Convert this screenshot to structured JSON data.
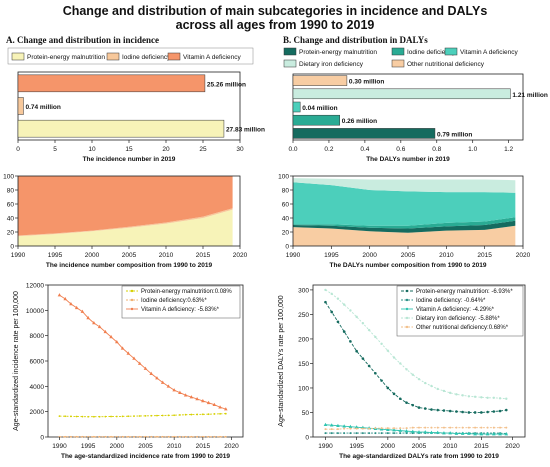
{
  "figure": {
    "title_line1": "Change and distribution of main subcategories in incidence and DALYs",
    "title_line2": "across all ages from 1990 to 2019",
    "section_a": "A. Change and distribution in incidence",
    "section_b": "B. Change and distribution in DALYs"
  },
  "colors": {
    "protein": "#f7f3b8",
    "iodine": "#f7c89b",
    "vitaminA": "#f5956a",
    "b_protein": "#156b5f",
    "b_iodine": "#2aab94",
    "b_vitaminA": "#4ccfbb",
    "b_iron": "#c9ecdf",
    "b_other": "#f8cda3"
  },
  "chart_data": [
    {
      "id": "a1",
      "type": "bar",
      "orientation": "horizontal",
      "legend": [
        "Protein-energy malnutrition",
        "Iodine deficiency",
        "Vitamin A deficiency"
      ],
      "categories": [
        "Vitamin A deficiency",
        "Iodine deficiency",
        "Protein-energy malnutrition"
      ],
      "values": [
        25.26,
        0.74,
        27.83
      ],
      "labels": [
        "25.26 million",
        "0.74 million",
        "27.83 million"
      ],
      "xticks": [
        "0",
        "5",
        "10",
        "15",
        "20",
        "25",
        "30"
      ],
      "xlim": [
        0,
        30
      ],
      "xlabel": "The incidence number in 2019"
    },
    {
      "id": "b1",
      "type": "bar",
      "orientation": "horizontal",
      "legend": [
        "Protein-energy malnutrition",
        "Iodine deficiency",
        "Vitamin A deficiency",
        "Dietary iron deficiency",
        "Other nutritional deficiency"
      ],
      "categories": [
        "Other nutritional deficiency",
        "Dietary iron deficiency",
        "Vitamin A deficiency",
        "Iodine deficiency",
        "Protein-energy malnutrition"
      ],
      "values": [
        0.3,
        1.21,
        0.04,
        0.26,
        0.79
      ],
      "labels": [
        "0.30 million",
        "1.21 million",
        "0.04 million",
        "0.26 million",
        "0.79 million"
      ],
      "xticks": [
        "0.0",
        "0.2",
        "0.4",
        "0.6",
        "0.8",
        "1.0",
        "1.2"
      ],
      "xlim": [
        0,
        1.28
      ],
      "xlabel": "The DALYs number in 2019"
    },
    {
      "id": "a2",
      "type": "area",
      "stacked_percent": true,
      "x": [
        1990,
        1995,
        2000,
        2005,
        2010,
        2015,
        2019
      ],
      "series": [
        {
          "name": "Protein-energy malnutrition",
          "values": [
            14,
            17,
            21,
            26,
            32,
            40,
            52
          ]
        },
        {
          "name": "Iodine deficiency",
          "values": [
            1,
            1,
            1,
            1.5,
            1.5,
            2,
            2
          ]
        },
        {
          "name": "Vitamin A deficiency",
          "values": [
            85,
            82,
            78,
            72.5,
            66.5,
            58,
            46
          ]
        }
      ],
      "xticks": [
        "1990",
        "1995",
        "2000",
        "2005",
        "2010",
        "2015",
        "2020"
      ],
      "yticks": [
        "0",
        "20",
        "40",
        "60",
        "80",
        "100"
      ],
      "ylim": [
        0,
        100
      ],
      "xlim": [
        1990,
        2020
      ],
      "xlabel": "The incidence number composition from 1990 to 2019"
    },
    {
      "id": "b2",
      "type": "area",
      "stacked_percent": true,
      "x": [
        1990,
        1995,
        2000,
        2005,
        2010,
        2015,
        2019
      ],
      "series": [
        {
          "name": "Other nutritional deficiency",
          "values": [
            27,
            25,
            21,
            19,
            22,
            23,
            29
          ]
        },
        {
          "name": "Protein-energy malnutrition",
          "values": [
            3,
            4,
            5,
            6,
            6,
            7,
            7
          ]
        },
        {
          "name": "Iodine deficiency",
          "values": [
            1,
            2,
            3,
            4,
            5,
            5,
            5
          ]
        },
        {
          "name": "Vitamin A deficiency",
          "values": [
            60,
            56,
            51,
            49,
            44,
            42,
            35
          ]
        },
        {
          "name": "Dietary iron deficiency",
          "values": [
            6,
            9,
            15,
            17,
            18,
            18,
            18
          ]
        }
      ],
      "xticks": [
        "1990",
        "1995",
        "2000",
        "2005",
        "2010",
        "2015",
        "2020"
      ],
      "yticks": [
        "0",
        "20",
        "40",
        "60",
        "80",
        "100"
      ],
      "ylim": [
        0,
        100
      ],
      "xlim": [
        1990,
        2020
      ],
      "xlabel": "The DALYs number composition from 1990 to 2019"
    },
    {
      "id": "a3",
      "type": "line",
      "x": [
        1990,
        1991,
        1992,
        1993,
        1994,
        1995,
        1996,
        1997,
        1998,
        1999,
        2000,
        2001,
        2002,
        2003,
        2004,
        2005,
        2006,
        2007,
        2008,
        2009,
        2010,
        2011,
        2012,
        2013,
        2014,
        2015,
        2016,
        2017,
        2018,
        2019
      ],
      "series": [
        {
          "name": "Protein-energy malnutrition",
          "legend": "Protein-energy malnutrition:0.08%",
          "values": [
            1650,
            1640,
            1630,
            1620,
            1610,
            1600,
            1600,
            1600,
            1610,
            1620,
            1620,
            1630,
            1640,
            1650,
            1660,
            1670,
            1680,
            1690,
            1700,
            1710,
            1720,
            1740,
            1760,
            1770,
            1780,
            1790,
            1800,
            1820,
            1830,
            1840
          ]
        },
        {
          "name": "Iodine deficiency",
          "legend": "Iodine deficiency:0.63%*",
          "values": [
            20,
            20,
            20,
            20,
            20,
            20,
            20,
            20,
            20,
            20,
            20,
            20,
            20,
            20,
            20,
            20,
            20,
            20,
            20,
            20,
            20,
            20,
            20,
            20,
            20,
            20,
            20,
            20,
            20,
            20
          ]
        },
        {
          "name": "Vitamin A deficiency",
          "legend": "Vitamin A deficiency: -5.83%*",
          "values": [
            11200,
            10900,
            10500,
            10200,
            9900,
            9400,
            9000,
            8700,
            8300,
            7900,
            7500,
            7000,
            6600,
            6200,
            5800,
            5400,
            5000,
            4650,
            4300,
            4000,
            3700,
            3500,
            3300,
            3150,
            3000,
            2850,
            2700,
            2550,
            2350,
            2200
          ]
        }
      ],
      "xticks": [
        "1990",
        "1995",
        "2000",
        "2005",
        "2010",
        "2015",
        "2020"
      ],
      "yticks": [
        "0",
        "2000",
        "4000",
        "6000",
        "8000",
        "10000",
        "12000"
      ],
      "ylim": [
        0,
        12000
      ],
      "xlim": [
        1988,
        2022
      ],
      "ylabel": "Age-standardized incidence rate per 100,000",
      "xlabel": "The age-standardized incidence rate from 1990 to 2019"
    },
    {
      "id": "b3",
      "type": "line",
      "x": [
        1990,
        1991,
        1992,
        1993,
        1994,
        1995,
        1996,
        1997,
        1998,
        1999,
        2000,
        2001,
        2002,
        2003,
        2004,
        2005,
        2006,
        2007,
        2008,
        2009,
        2010,
        2011,
        2012,
        2013,
        2014,
        2015,
        2016,
        2017,
        2018,
        2019
      ],
      "series": [
        {
          "name": "Protein-energy malnutrition",
          "legend": "Protein-energy malnutrition: -6.93%*",
          "values": [
            275,
            255,
            235,
            215,
            195,
            175,
            160,
            145,
            130,
            115,
            100,
            88,
            78,
            70,
            65,
            60,
            58,
            56,
            55,
            54,
            53,
            52,
            51,
            50,
            50,
            50,
            51,
            52,
            53,
            55
          ]
        },
        {
          "name": "Iodine deficiency",
          "legend": "Iodine deficiency: -0.64%*",
          "values": [
            8,
            8,
            8,
            8,
            8,
            8,
            8,
            8,
            8,
            8,
            8,
            8,
            8,
            8,
            8,
            8,
            8,
            8,
            8,
            8,
            8,
            8,
            8,
            8,
            8,
            8,
            8,
            8,
            8,
            7
          ]
        },
        {
          "name": "Vitamin A deficiency",
          "legend": "Vitamin A deficiency: -4.29%*",
          "values": [
            25,
            24,
            23,
            22,
            21,
            20,
            19,
            18,
            17,
            16,
            15,
            14,
            13,
            12,
            11,
            10,
            10,
            9,
            9,
            8,
            8,
            7,
            7,
            7,
            6,
            6,
            6,
            6,
            6,
            6
          ]
        },
        {
          "name": "Dietary iron deficiency",
          "legend": "Dietary iron deficiency: -5.88%*",
          "values": [
            300,
            292,
            282,
            270,
            258,
            245,
            232,
            218,
            204,
            190,
            176,
            162,
            150,
            138,
            127,
            118,
            110,
            104,
            98,
            94,
            90,
            87,
            85,
            83,
            82,
            81,
            80,
            80,
            79,
            78
          ]
        },
        {
          "name": "Other nutritional deficiency",
          "legend": "Other nutritional deficiency:0.68%*",
          "values": [
            16,
            16,
            16,
            17,
            17,
            17,
            17,
            17,
            18,
            18,
            18,
            18,
            18,
            18,
            19,
            19,
            19,
            19,
            19,
            19,
            19,
            19,
            19,
            19,
            19,
            19,
            19,
            19,
            19,
            19
          ]
        }
      ],
      "xticks": [
        "1990",
        "1995",
        "2000",
        "2005",
        "2010",
        "2015",
        "2020"
      ],
      "yticks": [
        "0",
        "50",
        "100",
        "150",
        "200",
        "250",
        "300"
      ],
      "ylim": [
        0,
        310
      ],
      "xlim": [
        1988,
        2022
      ],
      "ylabel": "Age-standardized DALYs rate per 100,000",
      "xlabel": "The age-standardized DALYs rate from 1990 to 2019"
    }
  ]
}
